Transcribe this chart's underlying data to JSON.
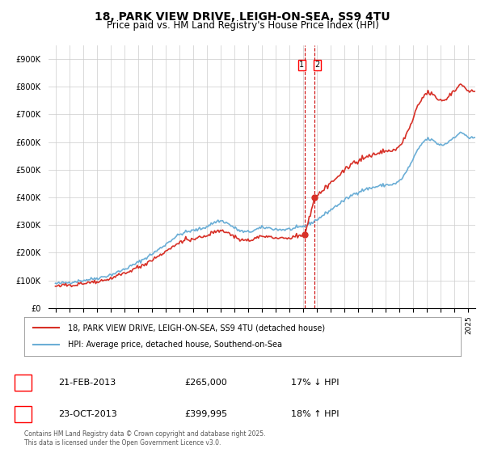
{
  "title": "18, PARK VIEW DRIVE, LEIGH-ON-SEA, SS9 4TU",
  "subtitle": "Price paid vs. HM Land Registry's House Price Index (HPI)",
  "legend_line1": "18, PARK VIEW DRIVE, LEIGH-ON-SEA, SS9 4TU (detached house)",
  "legend_line2": "HPI: Average price, detached house, Southend-on-Sea",
  "annotation1_label": "1",
  "annotation1_date": "21-FEB-2013",
  "annotation1_price": "£265,000",
  "annotation1_hpi": "17% ↓ HPI",
  "annotation2_label": "2",
  "annotation2_date": "23-OCT-2013",
  "annotation2_price": "£399,995",
  "annotation2_hpi": "18% ↑ HPI",
  "footer": "Contains HM Land Registry data © Crown copyright and database right 2025.\nThis data is licensed under the Open Government Licence v3.0.",
  "ylim": [
    0,
    950000
  ],
  "yticks": [
    0,
    100000,
    200000,
    300000,
    400000,
    500000,
    600000,
    700000,
    800000,
    900000
  ],
  "ytick_labels": [
    "£0",
    "£100K",
    "£200K",
    "£300K",
    "£400K",
    "£500K",
    "£600K",
    "£700K",
    "£800K",
    "£900K"
  ],
  "hpi_color": "#6baed6",
  "price_color": "#d73027",
  "vline_color": "#cc0000",
  "grid_color": "#cccccc",
  "background_color": "#ffffff",
  "sale1_x": 2013.13,
  "sale1_y": 265000,
  "sale2_x": 2013.81,
  "sale2_y": 399995,
  "xmin": 1994.5,
  "xmax": 2025.5
}
